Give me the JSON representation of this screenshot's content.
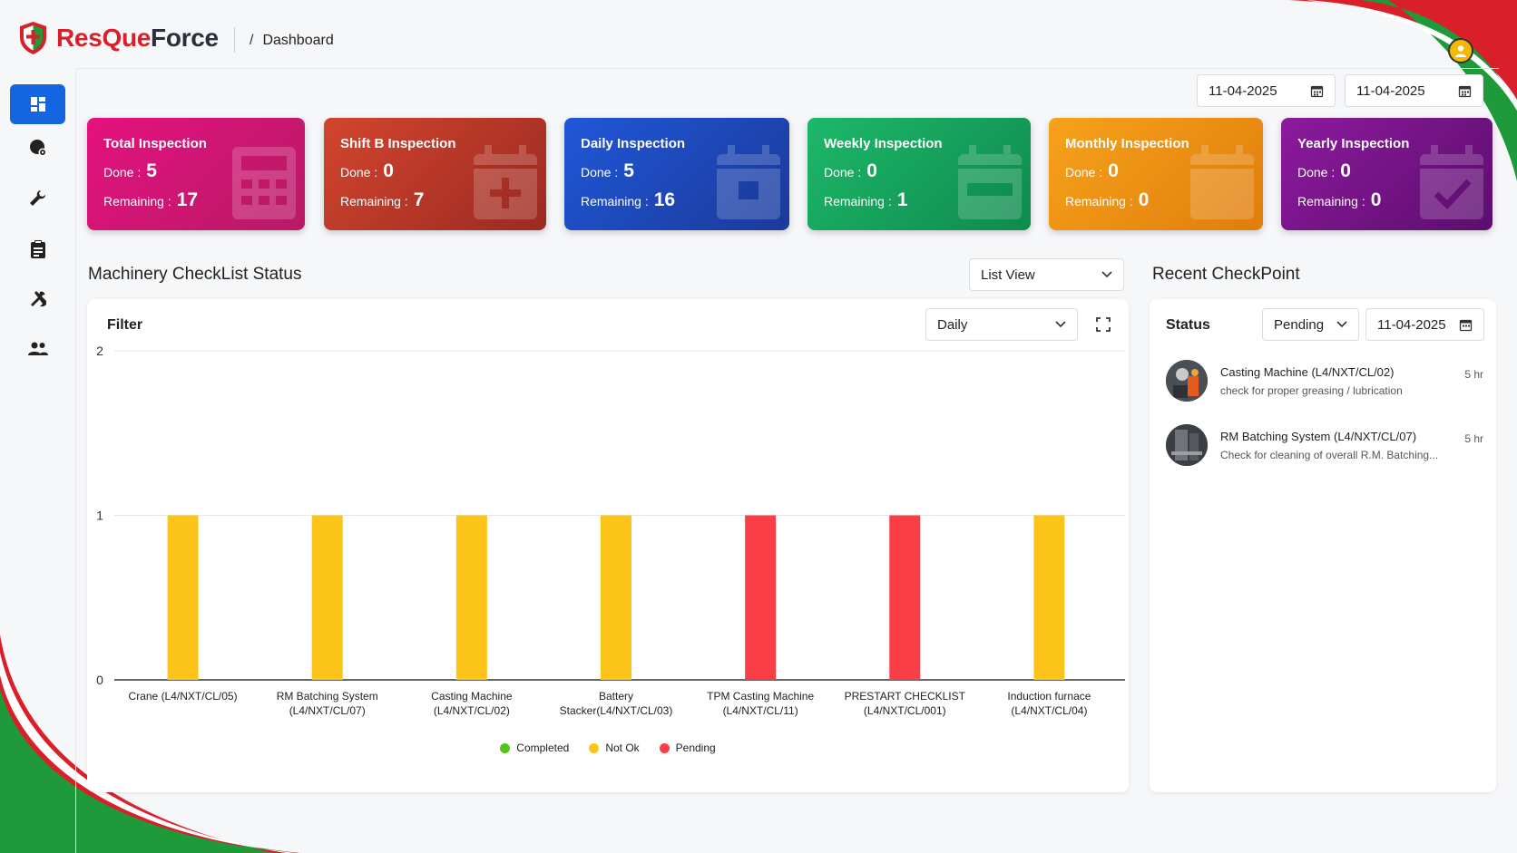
{
  "app": {
    "name_part1": "ResQue",
    "name_part2": "Force",
    "breadcrumb_sep": "/",
    "breadcrumb": "Dashboard"
  },
  "sidebar": {
    "items": [
      {
        "icon": "dashboard-icon",
        "active": true
      },
      {
        "icon": "machine-settings-icon",
        "active": false
      },
      {
        "icon": "wrench-icon",
        "active": false
      },
      {
        "icon": "clipboard-icon",
        "active": false
      },
      {
        "icon": "tools-icon",
        "active": false
      },
      {
        "icon": "users-icon",
        "active": false
      }
    ]
  },
  "date_range": {
    "from": "11-04-2025",
    "to": "11-04-2025"
  },
  "cards": [
    {
      "title": "Total Inspection",
      "done_label": "Done :",
      "done": "5",
      "remaining_label": "Remaining :",
      "remaining": "17",
      "icon": "calculator-icon"
    },
    {
      "title": "Shift B Inspection",
      "done_label": "Done :",
      "done": "0",
      "remaining_label": "Remaining :",
      "remaining": "7",
      "icon": "calendar-plus-icon"
    },
    {
      "title": "Daily Inspection",
      "done_label": "Done :",
      "done": "5",
      "remaining_label": "Remaining :",
      "remaining": "16",
      "icon": "calendar-day-icon"
    },
    {
      "title": "Weekly Inspection",
      "done_label": "Done :",
      "done": "0",
      "remaining_label": "Remaining :",
      "remaining": "1",
      "icon": "calendar-week-icon"
    },
    {
      "title": "Monthly Inspection",
      "done_label": "Done :",
      "done": "0",
      "remaining_label": "Remaining :",
      "remaining": "0",
      "icon": "calendar-month-icon"
    },
    {
      "title": "Yearly Inspection",
      "done_label": "Done :",
      "done": "0",
      "remaining_label": "Remaining :",
      "remaining": "0",
      "icon": "calendar-check-icon"
    }
  ],
  "machinery": {
    "title": "Machinery CheckList Status",
    "view_select": "List View",
    "filter_label": "Filter",
    "period_select": "Daily"
  },
  "chart_data": {
    "type": "bar",
    "categories": [
      [
        "Crane (L4/NXT/CL/05)"
      ],
      [
        "RM Batching System",
        "(L4/NXT/CL/07)"
      ],
      [
        "Casting Machine",
        "(L4/NXT/CL/02)"
      ],
      [
        "Battery",
        "Stacker(L4/NXT/CL/03)"
      ],
      [
        "TPM Casting Machine",
        "(L4/NXT/CL/11)"
      ],
      [
        "PRESTART CHECKLIST",
        "(L4/NXT/CL/001)"
      ],
      [
        "Induction furnace",
        "(L4/NXT/CL/04)"
      ]
    ],
    "values": [
      1,
      1,
      1,
      1,
      1,
      1,
      1
    ],
    "status": [
      "Not Ok",
      "Not Ok",
      "Not Ok",
      "Not Ok",
      "Pending",
      "Pending",
      "Not Ok"
    ],
    "ylim": [
      0,
      2
    ],
    "yticks": [
      0,
      1,
      2
    ],
    "legend": [
      {
        "name": "Completed",
        "color": "#52c41a"
      },
      {
        "name": "Not Ok",
        "color": "#fcc419"
      },
      {
        "name": "Pending",
        "color": "#fa3e45"
      }
    ],
    "legend_position": "bottom"
  },
  "recent": {
    "title": "Recent CheckPoint",
    "status_label": "Status",
    "status_select": "Pending",
    "date": "11-04-2025",
    "items": [
      {
        "title": "Casting Machine (L4/NXT/CL/02)",
        "subtitle": "check for proper greasing / lubrication",
        "time": "5 hr"
      },
      {
        "title": "RM Batching System (L4/NXT/CL/07)",
        "subtitle": "Check for cleaning of overall R.M. Batching...",
        "time": "5 hr"
      }
    ]
  },
  "colors": {
    "accent": "#1565e0",
    "brand_red": "#d9202a",
    "brand_green": "#1e9a3b"
  }
}
